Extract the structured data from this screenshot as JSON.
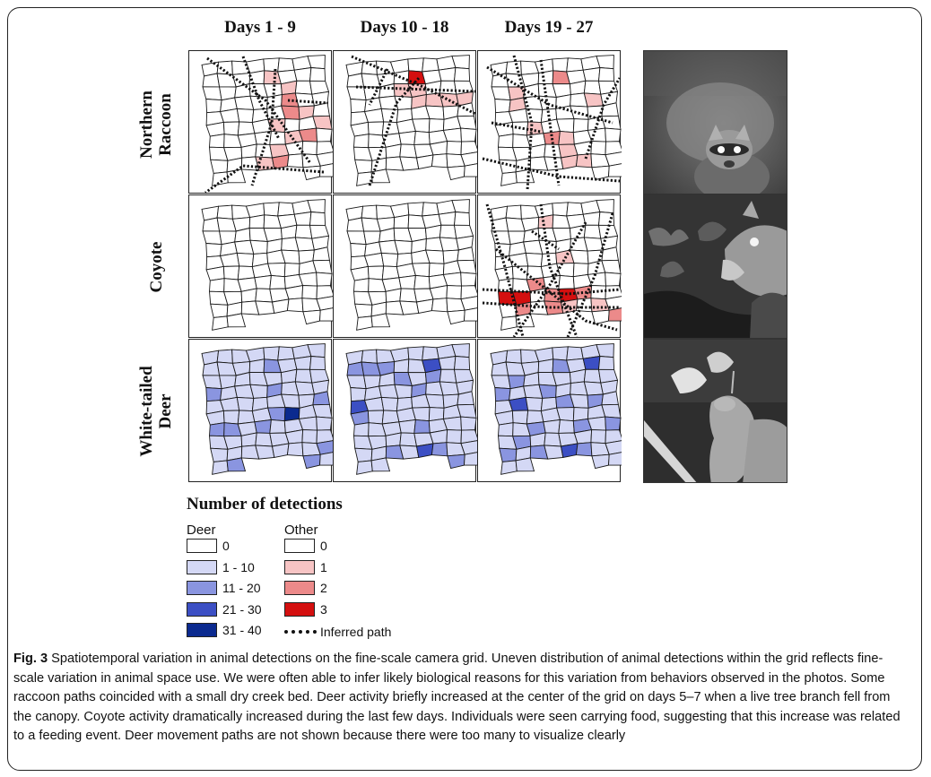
{
  "columns": [
    "Days 1 - 9",
    "Days 10 - 18",
    "Days 19 - 27"
  ],
  "rows": [
    {
      "line1": "Northern",
      "line2": "Raccoon"
    },
    {
      "line1": "Coyote",
      "line2": ""
    },
    {
      "line1": "White-tailed",
      "line2": "Deer"
    }
  ],
  "legend": {
    "title": "Number of detections",
    "deer_header": "Deer",
    "other_header": "Other",
    "deer_items": [
      {
        "label": "0",
        "color": "#ffffff"
      },
      {
        "label": "1 - 10",
        "color": "#d4d8f5"
      },
      {
        "label": "11 - 20",
        "color": "#8a95e0"
      },
      {
        "label": "21 - 30",
        "color": "#3c4fc4"
      },
      {
        "label": "31 - 40",
        "color": "#0b2a8f"
      }
    ],
    "other_items": [
      {
        "label": "0",
        "color": "#ffffff"
      },
      {
        "label": "1",
        "color": "#f7c4c4"
      },
      {
        "label": "2",
        "color": "#ec8a8a"
      },
      {
        "label": "3",
        "color": "#d40f0f"
      }
    ],
    "path_label": "Inferred path"
  },
  "caption": {
    "label": "Fig. 3",
    "text": " Spatiotemporal variation in animal detections on the fine-scale camera grid. Uneven distribution of animal detections within the grid reflects fine-scale variation in animal space use. We were often able to infer likely biological reasons for this variation from behaviors observed in the photos. Some raccoon paths coincided with a small dry creek bed. Deer activity briefly increased at the center of the grid on days 5–7 when a live tree branch fell from the canopy. Coyote activity dramatically increased during the last few days. Individuals were seen carrying food, suggesting that this increase was related to a feeding event. Deer movement paths are not shown because there were too many to visualize clearly"
  }
}
